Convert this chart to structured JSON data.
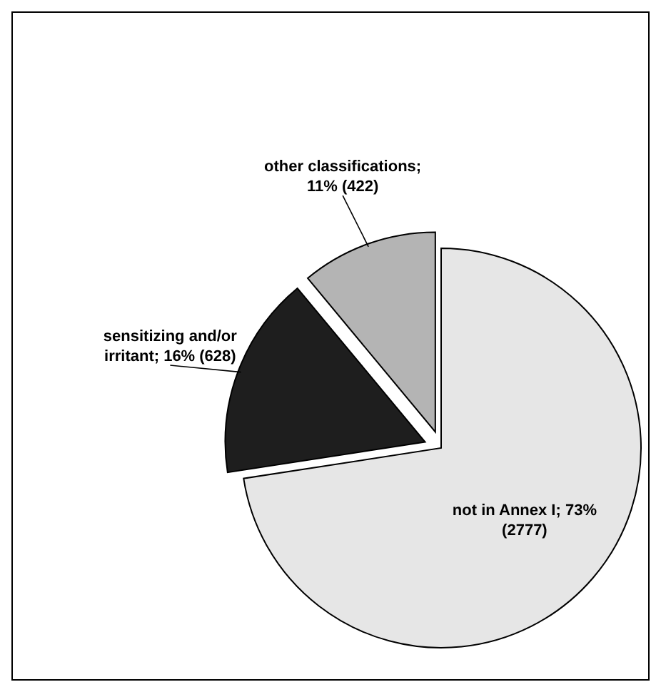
{
  "chart_data": {
    "type": "pie",
    "categories": [
      "other classifications; 11% (422)",
      "sensitizing and/or irritant; 16% (628)",
      "not in Annex I; 73% (2777)"
    ],
    "values": [
      422,
      628,
      2777
    ],
    "colors": [
      "#b4b4b4",
      "#1e1e1e",
      "#e6e6e6"
    ]
  }
}
